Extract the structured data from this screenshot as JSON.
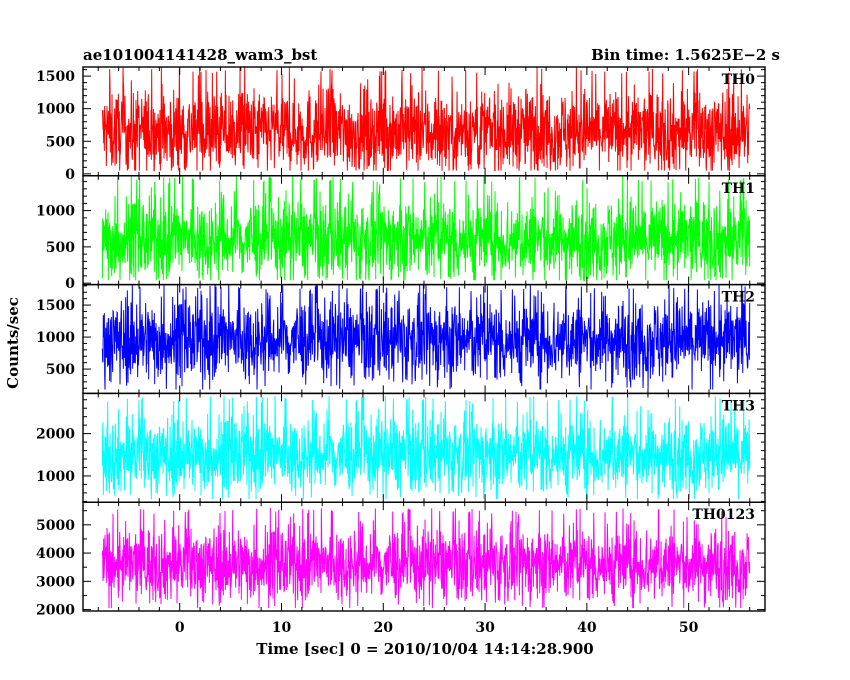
{
  "chart_data": {
    "type": "line",
    "title_left": "ae101004141428_wam3_bst",
    "title_right": "Bin time: 1.5625E−2 s",
    "xlabel": "Time [sec] 0 = 2010/10/04 14:14:28.900",
    "ylabel": "Counts/sec",
    "xlim": [
      -9.5,
      57.5
    ],
    "xticks": [
      0,
      10,
      20,
      30,
      40,
      50
    ],
    "x_range": [
      -7.6,
      56.0
    ],
    "grid": false,
    "panels": [
      {
        "name": "TH0",
        "color": "#ff0000",
        "ylim": [
          -30,
          1640
        ],
        "yticks": [
          0,
          500,
          1000,
          1500
        ],
        "mean": 650,
        "spread": 330,
        "min": 50,
        "max": 1640
      },
      {
        "name": "TH1",
        "color": "#00ff00",
        "ylim": [
          -20,
          1480
        ],
        "yticks": [
          0,
          500,
          1000
        ],
        "mean": 600,
        "spread": 300,
        "min": 40,
        "max": 1480
      },
      {
        "name": "TH2",
        "color": "#0000ff",
        "ylim": [
          120,
          1820
        ],
        "yticks": [
          500,
          1000,
          1500
        ],
        "mean": 950,
        "spread": 340,
        "min": 180,
        "max": 1820
      },
      {
        "name": "TH3",
        "color": "#00ffff",
        "ylim": [
          380,
          2950
        ],
        "yticks": [
          1000,
          2000
        ],
        "mean": 1500,
        "spread": 480,
        "min": 450,
        "max": 2900
      },
      {
        "name": "TH0123",
        "color": "#ff00ff",
        "ylim": [
          1950,
          5800
        ],
        "yticks": [
          2000,
          3000,
          4000,
          5000
        ],
        "mean": 3600,
        "spread": 700,
        "min": 2050,
        "max": 5600
      }
    ]
  }
}
